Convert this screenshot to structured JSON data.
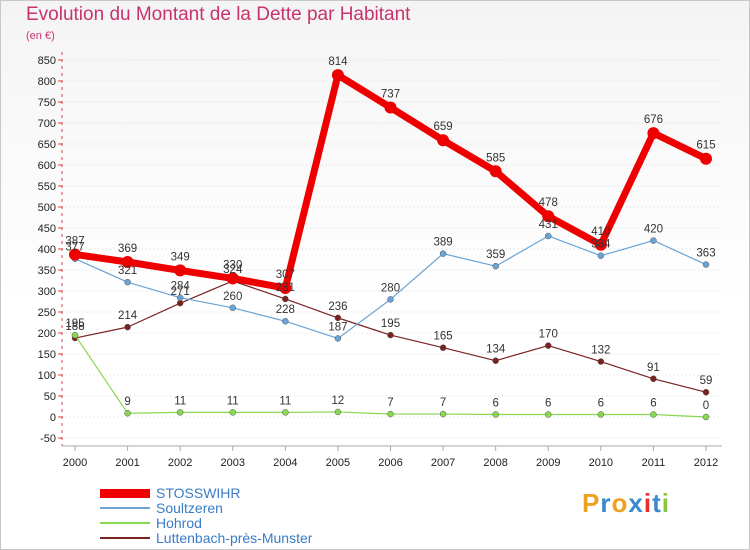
{
  "title": "Evolution du Montant de la Dette par Habitant",
  "subtitle": "(en €)",
  "logo": {
    "text": "Proxiti",
    "letters": [
      "P",
      "r",
      "o",
      "x",
      "i",
      "t",
      "i"
    ],
    "colors": [
      "#f0a020",
      "#3a8ad0",
      "#f0a020",
      "#3a8ad0",
      "#e53030",
      "#3a8ad0",
      "#8cc63f"
    ]
  },
  "chart_data": {
    "type": "line",
    "title": "Evolution du Montant de la Dette par Habitant",
    "subtitle": "(en €)",
    "x": [
      "2000",
      "2001",
      "2002",
      "2003",
      "2004",
      "2005",
      "2006",
      "2007",
      "2008",
      "2009",
      "2010",
      "2011",
      "2012"
    ],
    "yticks": [
      -50,
      0,
      50,
      100,
      150,
      200,
      250,
      300,
      350,
      400,
      450,
      500,
      550,
      600,
      650,
      700,
      750,
      800,
      850
    ],
    "ylim": [
      -50,
      850
    ],
    "grid": "horizontal dotted",
    "legend_position": "bottom-left",
    "series": [
      {
        "name": "STOSSWIHR",
        "color": "#ee0000",
        "width": 7,
        "radius": 6,
        "values": [
          387,
          369,
          349,
          330,
          307,
          814,
          737,
          659,
          585,
          478,
          410,
          676,
          615
        ],
        "labels": [
          "387",
          "369",
          "349",
          "330",
          "307",
          "814",
          "737",
          "659",
          "585",
          "478",
          "410",
          "676",
          "615"
        ]
      },
      {
        "name": "Soultzeren",
        "color": "#6aa3d5",
        "width": 1.2,
        "radius": 3,
        "values": [
          377,
          321,
          284,
          260,
          228,
          187,
          280,
          389,
          359,
          431,
          384,
          420,
          363
        ],
        "labels": [
          "377",
          "321",
          "284",
          "260",
          "228",
          "187",
          "280",
          "389",
          "359",
          "431",
          "384",
          "420",
          "363"
        ]
      },
      {
        "name": "Hohrod",
        "color": "#88d850",
        "width": 1.2,
        "radius": 3,
        "values": [
          195,
          9,
          11,
          11,
          11,
          12,
          7,
          7,
          6,
          6,
          6,
          6,
          0
        ],
        "labels": [
          "195",
          "9",
          "11",
          "11",
          "11",
          "12",
          "7",
          "7",
          "6",
          "6",
          "6",
          "6",
          "0"
        ]
      },
      {
        "name": "Luttenbach-près-Munster",
        "color": "#7a2222",
        "width": 1.2,
        "radius": 3,
        "values": [
          188,
          214,
          271,
          324,
          281,
          236,
          195,
          165,
          134,
          170,
          132,
          91,
          59
        ],
        "labels": [
          "188",
          "214",
          "271",
          "324",
          "281",
          "236",
          "195",
          "165",
          "134",
          "170",
          "132",
          "91",
          "59"
        ]
      }
    ]
  }
}
